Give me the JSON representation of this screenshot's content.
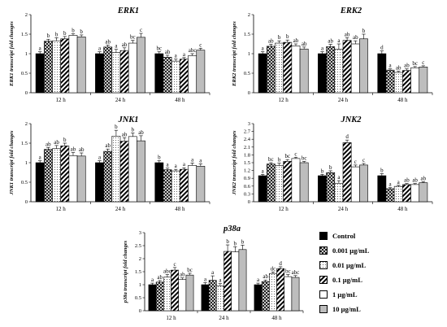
{
  "legend": {
    "items": [
      {
        "label": "Control",
        "pattern": "solid-black"
      },
      {
        "label": "0.001 μg/mL",
        "pattern": "crosshatch"
      },
      {
        "label": "0.01 μg/mL",
        "pattern": "dots"
      },
      {
        "label": "0.1 μg/mL",
        "pattern": "diagonal-stripes"
      },
      {
        "label": "1 μg/mL",
        "pattern": "white"
      },
      {
        "label": "10 μg/mL",
        "pattern": "light-grey"
      }
    ]
  },
  "colors": {
    "control": "#000000",
    "light_grey": "#bdbdbd",
    "axis": "#000000"
  },
  "chart_data": [
    {
      "type": "bar",
      "title": "ERK1",
      "ylabel": "ERK1 transcript fold changes",
      "ylim": [
        0,
        2
      ],
      "yticks": [
        "0",
        "0.5",
        "1",
        "1.5",
        "2"
      ],
      "categories": [
        "12 h",
        "24 h",
        "48 h"
      ],
      "series": [
        {
          "name": "Control",
          "values": [
            1.0,
            1.0,
            1.0
          ],
          "errors": [
            0.05,
            0.05,
            0.05
          ],
          "letters": [
            "a",
            "a",
            "bc"
          ]
        },
        {
          "name": "0.001 μg/mL",
          "values": [
            1.32,
            1.17,
            0.91
          ],
          "errors": [
            0.05,
            0.05,
            0.05
          ],
          "letters": [
            "b",
            "ab",
            "ab"
          ]
        },
        {
          "name": "0.01 μg/mL",
          "values": [
            1.33,
            1.03,
            0.81
          ],
          "errors": [
            0.08,
            0.08,
            0.05
          ],
          "letters": [
            "b",
            "a",
            "a"
          ]
        },
        {
          "name": "0.1 μg/mL",
          "values": [
            1.38,
            1.08,
            0.86
          ],
          "errors": [
            0.06,
            0.07,
            0.04
          ],
          "letters": [
            "b",
            "ab",
            "a"
          ]
        },
        {
          "name": "1 μg/mL",
          "values": [
            1.47,
            1.27,
            0.95
          ],
          "errors": [
            0.04,
            0.07,
            0.05
          ],
          "letters": [
            "b",
            "bc",
            "abc"
          ]
        },
        {
          "name": "10 μg/mL",
          "values": [
            1.43,
            1.42,
            1.09
          ],
          "errors": [
            0.05,
            0.1,
            0.05
          ],
          "letters": [
            "b",
            "c",
            "c"
          ]
        }
      ]
    },
    {
      "type": "bar",
      "title": "ERK2",
      "ylabel": "ERK2 transcript fold changes",
      "ylim": [
        0,
        2
      ],
      "yticks": [
        "0",
        "0.5",
        "1",
        "1.5",
        "2"
      ],
      "categories": [
        "12 h",
        "24 h",
        "48 h"
      ],
      "series": [
        {
          "name": "Control",
          "values": [
            1.0,
            1.0,
            1.0
          ],
          "errors": [
            0.05,
            0.05,
            0.07
          ],
          "letters": [
            "a",
            "a",
            "d"
          ]
        },
        {
          "name": "0.001 μg/mL",
          "values": [
            1.19,
            1.18,
            0.58
          ],
          "errors": [
            0.05,
            0.06,
            0.03
          ],
          "letters": [
            "ab",
            "ab",
            "a"
          ]
        },
        {
          "name": "0.01 μg/mL",
          "values": [
            1.27,
            1.11,
            0.52
          ],
          "errors": [
            0.06,
            0.14,
            0.03
          ],
          "letters": [
            "b",
            "a",
            "ab"
          ]
        },
        {
          "name": "0.1 μg/mL",
          "values": [
            1.29,
            1.34,
            0.57
          ],
          "errors": [
            0.06,
            0.07,
            0.04
          ],
          "letters": [
            "b",
            "ab",
            "ab"
          ]
        },
        {
          "name": "1 μg/mL",
          "values": [
            1.2,
            1.25,
            0.64
          ],
          "errors": [
            0.05,
            0.08,
            0.03
          ],
          "letters": [
            "ab",
            "ab",
            "bc"
          ]
        },
        {
          "name": "10 μg/mL",
          "values": [
            1.12,
            1.38,
            0.66
          ],
          "errors": [
            0.05,
            0.12,
            0.03
          ],
          "letters": [
            "ab",
            "b",
            "c"
          ]
        }
      ]
    },
    {
      "type": "bar",
      "title": "JNK1",
      "ylabel": "JNK1 transcript fold changes",
      "ylim": [
        0,
        2
      ],
      "yticks": [
        "0",
        "0.5",
        "1",
        "1.5",
        "2"
      ],
      "categories": [
        "12 h",
        "24 h",
        "48 h"
      ],
      "series": [
        {
          "name": "Control",
          "values": [
            1.0,
            1.0,
            1.0
          ],
          "errors": [
            0.05,
            0.05,
            0.05
          ],
          "letters": [
            "a",
            "a",
            "b"
          ]
        },
        {
          "name": "0.001 μg/mL",
          "values": [
            1.34,
            1.29,
            0.82
          ],
          "errors": [
            0.05,
            0.06,
            0.04
          ],
          "letters": [
            "ab",
            "ab",
            "a"
          ]
        },
        {
          "name": "0.01 μg/mL",
          "values": [
            1.36,
            1.68,
            0.79
          ],
          "errors": [
            0.08,
            0.15,
            0.04
          ],
          "letters": [
            "ab",
            "b",
            "a"
          ]
        },
        {
          "name": "0.1 μg/mL",
          "values": [
            1.43,
            1.55,
            0.83
          ],
          "errors": [
            0.07,
            0.09,
            0.04
          ],
          "letters": [
            "b",
            "ab",
            "a"
          ]
        },
        {
          "name": "1 μg/mL",
          "values": [
            1.18,
            1.67,
            0.93
          ],
          "errors": [
            0.08,
            0.09,
            0.06
          ],
          "letters": [
            "ab",
            "b",
            "a"
          ]
        },
        {
          "name": "10 μg/mL",
          "values": [
            1.17,
            1.56,
            0.91
          ],
          "errors": [
            0.08,
            0.13,
            0.06
          ],
          "letters": [
            "ab",
            "ab",
            "a"
          ]
        }
      ]
    },
    {
      "type": "bar",
      "title": "JNK2",
      "ylabel": "JNK2 transcript fold changes",
      "ylim": [
        0,
        3
      ],
      "yticks": [
        "0",
        "0.3",
        "0.6",
        "0.9",
        "1.2",
        "1.5",
        "1.8",
        "2.1",
        "2.4",
        "2.7",
        "3"
      ],
      "categories": [
        "12 h",
        "24 h",
        "48 h"
      ],
      "series": [
        {
          "name": "Control",
          "values": [
            1.0,
            1.0,
            1.0
          ],
          "errors": [
            0.05,
            0.05,
            0.08
          ],
          "letters": [
            "a",
            "b",
            "b"
          ]
        },
        {
          "name": "0.001 μg/mL",
          "values": [
            1.45,
            1.12,
            0.5
          ],
          "errors": [
            0.05,
            0.07,
            0.04
          ],
          "letters": [
            "bc",
            "b",
            "a"
          ]
        },
        {
          "name": "0.01 μg/mL",
          "values": [
            1.39,
            0.71,
            0.59
          ],
          "errors": [
            0.09,
            0.1,
            0.04
          ],
          "letters": [
            "b",
            "a",
            "a"
          ]
        },
        {
          "name": "0.1 μg/mL",
          "values": [
            1.55,
            2.27,
            0.66
          ],
          "errors": [
            0.07,
            0.1,
            0.04
          ],
          "letters": [
            "bc",
            "d",
            "ab"
          ]
        },
        {
          "name": "1 μg/mL",
          "values": [
            1.66,
            1.34,
            0.66
          ],
          "errors": [
            0.05,
            0.07,
            0.04
          ],
          "letters": [
            "c",
            "c",
            "ab"
          ]
        },
        {
          "name": "10 μg/mL",
          "values": [
            1.5,
            1.41,
            0.73
          ],
          "errors": [
            0.05,
            0.06,
            0.04
          ],
          "letters": [
            "bc",
            "c",
            "ab"
          ]
        }
      ]
    },
    {
      "type": "bar",
      "title": "p38a",
      "ylabel": "p38a transcript fold changes",
      "ylim": [
        0,
        3
      ],
      "yticks": [
        "0",
        "0.5",
        "1",
        "1.5",
        "2",
        "2.5",
        "3"
      ],
      "categories": [
        "12 h",
        "24 h",
        "48 h"
      ],
      "series": [
        {
          "name": "Control",
          "values": [
            1.0,
            1.0,
            1.0
          ],
          "errors": [
            0.06,
            0.08,
            0.06
          ],
          "letters": [
            "a",
            "a",
            "a"
          ]
        },
        {
          "name": "0.001 μg/mL",
          "values": [
            1.1,
            1.17,
            1.12
          ],
          "errors": [
            0.06,
            0.17,
            0.06
          ],
          "letters": [
            "ab",
            "a",
            "ab"
          ]
        },
        {
          "name": "0.01 μg/mL",
          "values": [
            1.29,
            0.96,
            1.43
          ],
          "errors": [
            0.1,
            0.08,
            0.06
          ],
          "letters": [
            "abc",
            "a",
            "dc"
          ]
        },
        {
          "name": "0.1 μg/mL",
          "values": [
            1.56,
            2.28,
            1.62
          ],
          "errors": [
            0.1,
            0.25,
            0.07
          ],
          "letters": [
            "c",
            "b",
            "d"
          ]
        },
        {
          "name": "1 μg/mL",
          "values": [
            1.2,
            2.26,
            1.31
          ],
          "errors": [
            0.06,
            0.2,
            0.08
          ],
          "letters": [
            "ab",
            "b",
            "bc"
          ]
        },
        {
          "name": "10 μg/mL",
          "values": [
            1.37,
            2.35,
            1.28
          ],
          "errors": [
            0.07,
            0.17,
            0.07
          ],
          "letters": [
            "bc",
            "b",
            "abc"
          ]
        }
      ]
    }
  ]
}
